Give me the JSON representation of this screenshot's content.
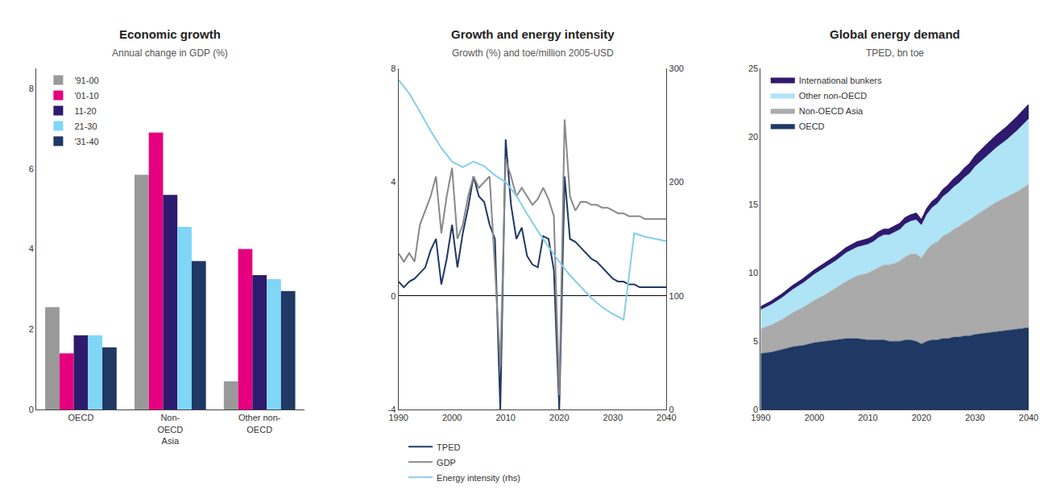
{
  "chart_data": [
    {
      "type": "bar",
      "title": "Economic growth",
      "subtitle": "Annual change in GDP (%)",
      "categories": [
        "OECD",
        "Non-\nOECD\nAsia",
        "Other non-\nOECD"
      ],
      "series": [
        {
          "name": "'91-00",
          "color": "#999999",
          "values": [
            2.55,
            5.85,
            0.7
          ]
        },
        {
          "name": "'01-10",
          "color": "#e6007e",
          "values": [
            1.4,
            6.9,
            4.0
          ]
        },
        {
          "name": "11-20",
          "color": "#2e1a6e",
          "values": [
            1.85,
            5.35,
            3.35
          ]
        },
        {
          "name": "21-30",
          "color": "#7fd6f7",
          "values": [
            1.85,
            4.55,
            3.25
          ]
        },
        {
          "name": "'31-40",
          "color": "#1f3864",
          "values": [
            1.55,
            3.7,
            2.95
          ]
        }
      ],
      "ylim": [
        0,
        8.5
      ],
      "yticks": [
        0,
        2,
        4,
        6,
        8
      ],
      "legend": "upper left",
      "grid": false
    },
    {
      "type": "line",
      "title": "Growth and energy intensity",
      "subtitle": "Growth (%) and toe/million 2005-USD",
      "xlim": [
        1990,
        2040
      ],
      "xticks": [
        1990,
        2000,
        2010,
        2020,
        2030,
        2040
      ],
      "ylim": [
        -4,
        8
      ],
      "yticks": [
        -4,
        0,
        4,
        8
      ],
      "y2lim": [
        0,
        300
      ],
      "y2ticks": [
        0,
        100,
        200,
        300
      ],
      "series": [
        {
          "name": "TPED",
          "color": "#1f3864",
          "x": [
            1990,
            1991,
            1992,
            1993,
            1994,
            1995,
            1996,
            1997,
            1998,
            1999,
            2000,
            2001,
            2002,
            2003,
            2004,
            2005,
            2006,
            2007,
            2008,
            2009,
            2010,
            2011,
            2012,
            2013,
            2014,
            2015,
            2016,
            2017,
            2018,
            2019,
            2020,
            2021,
            2022,
            2023,
            2024,
            2025,
            2026,
            2027,
            2028,
            2029,
            2030,
            2031,
            2032,
            2033,
            2034,
            2035,
            2036,
            2037,
            2038,
            2039,
            2040
          ],
          "values": [
            0.5,
            0.3,
            0.5,
            0.6,
            0.8,
            1.0,
            1.6,
            2.0,
            0.4,
            1.3,
            2.5,
            1.0,
            2.2,
            3.1,
            4.2,
            3.5,
            3.3,
            2.5,
            2.0,
            -4.0,
            5.5,
            3.2,
            2.0,
            2.4,
            1.4,
            1.1,
            1.0,
            2.1,
            2.0,
            0.9,
            -4.0,
            4.2,
            2.0,
            1.9,
            1.7,
            1.5,
            1.3,
            1.2,
            1.0,
            0.8,
            0.6,
            0.5,
            0.5,
            0.4,
            0.4,
            0.3,
            0.3,
            0.3,
            0.3,
            0.3,
            0.3
          ]
        },
        {
          "name": "GDP",
          "color": "#888888",
          "x": [
            1990,
            1991,
            1992,
            1993,
            1994,
            1995,
            1996,
            1997,
            1998,
            1999,
            2000,
            2001,
            2002,
            2003,
            2004,
            2005,
            2006,
            2007,
            2008,
            2009,
            2010,
            2011,
            2012,
            2013,
            2014,
            2015,
            2016,
            2017,
            2018,
            2019,
            2020,
            2021,
            2022,
            2023,
            2024,
            2025,
            2026,
            2027,
            2028,
            2029,
            2030,
            2031,
            2032,
            2033,
            2034,
            2035,
            2036,
            2037,
            2038,
            2039,
            2040
          ],
          "values": [
            1.5,
            1.2,
            1.5,
            1.2,
            2.5,
            3.0,
            3.5,
            4.2,
            2.2,
            3.5,
            4.5,
            2.0,
            2.5,
            3.5,
            4.2,
            3.8,
            4.0,
            4.2,
            1.0,
            -2.5,
            4.8,
            4.2,
            3.5,
            3.8,
            3.5,
            3.2,
            3.4,
            3.8,
            3.4,
            2.8,
            -3.5,
            6.2,
            3.5,
            3.0,
            3.3,
            3.3,
            3.2,
            3.2,
            3.1,
            3.1,
            3.0,
            2.9,
            2.9,
            2.8,
            2.8,
            2.8,
            2.7,
            2.7,
            2.7,
            2.7,
            2.7
          ]
        },
        {
          "name": "Energy intensity (rhs)",
          "color": "#87CEEB",
          "axis": "y2",
          "x": [
            1990,
            1992,
            1994,
            1996,
            1998,
            2000,
            2002,
            2004,
            2006,
            2008,
            2010,
            2012,
            2014,
            2016,
            2018,
            2020,
            2022,
            2024,
            2026,
            2028,
            2030,
            2032,
            2034,
            2036,
            2038,
            2040
          ],
          "values": [
            290,
            278,
            262,
            245,
            230,
            218,
            213,
            218,
            214,
            206,
            200,
            188,
            172,
            157,
            143,
            130,
            118,
            108,
            98,
            90,
            84,
            79,
            155,
            152,
            150,
            148
          ]
        }
      ],
      "legend": "lower left",
      "grid": false
    },
    {
      "type": "area",
      "stacked": true,
      "title": "Global energy demand",
      "subtitle": "TPED, bn toe",
      "x": [
        1990,
        1992,
        1994,
        1996,
        1998,
        2000,
        2002,
        2004,
        2006,
        2008,
        2010,
        2011,
        2012,
        2013,
        2014,
        2015,
        2016,
        2017,
        2018,
        2019,
        2020,
        2021,
        2022,
        2023,
        2024,
        2025,
        2026,
        2027,
        2028,
        2029,
        2030,
        2032,
        2034,
        2036,
        2038,
        2040
      ],
      "xlim": [
        1990,
        2040
      ],
      "xticks": [
        1990,
        2000,
        2010,
        2020,
        2030,
        2040
      ],
      "ylim": [
        0,
        25
      ],
      "yticks": [
        0,
        5,
        10,
        15,
        20,
        25
      ],
      "series": [
        {
          "name": "OECD",
          "color": "#1f3864",
          "values": [
            4.1,
            4.2,
            4.4,
            4.6,
            4.7,
            4.9,
            5.0,
            5.1,
            5.2,
            5.2,
            5.1,
            5.1,
            5.1,
            5.1,
            5.0,
            5.0,
            5.0,
            5.1,
            5.1,
            5.0,
            4.8,
            5.0,
            5.1,
            5.1,
            5.2,
            5.2,
            5.3,
            5.3,
            5.4,
            5.4,
            5.5,
            5.6,
            5.7,
            5.8,
            5.9,
            6.0
          ]
        },
        {
          "name": "Non-OECD Asia",
          "color": "#aaaaaa",
          "values": [
            1.8,
            2.0,
            2.2,
            2.5,
            2.8,
            3.1,
            3.4,
            3.8,
            4.2,
            4.6,
            4.9,
            5.1,
            5.3,
            5.5,
            5.6,
            5.7,
            5.9,
            6.1,
            6.3,
            6.4,
            6.3,
            6.7,
            7.0,
            7.2,
            7.5,
            7.7,
            7.9,
            8.1,
            8.3,
            8.5,
            8.7,
            9.1,
            9.5,
            9.8,
            10.1,
            10.5
          ]
        },
        {
          "name": "Other non-OECD",
          "color": "#aee4f5",
          "values": [
            1.4,
            1.5,
            1.6,
            1.7,
            1.8,
            1.9,
            2.0,
            2.0,
            2.1,
            2.1,
            2.1,
            2.1,
            2.2,
            2.2,
            2.2,
            2.3,
            2.3,
            2.4,
            2.4,
            2.5,
            2.4,
            2.6,
            2.7,
            2.8,
            2.9,
            3.0,
            3.1,
            3.2,
            3.3,
            3.4,
            3.6,
            3.8,
            4.0,
            4.2,
            4.5,
            4.8
          ]
        },
        {
          "name": "International bunkers",
          "color": "#2e1a6e",
          "values": [
            0.2,
            0.22,
            0.24,
            0.26,
            0.28,
            0.3,
            0.31,
            0.33,
            0.35,
            0.37,
            0.38,
            0.39,
            0.4,
            0.4,
            0.41,
            0.42,
            0.43,
            0.44,
            0.45,
            0.46,
            0.36,
            0.4,
            0.42,
            0.44,
            0.48,
            0.52,
            0.56,
            0.6,
            0.65,
            0.7,
            0.75,
            0.82,
            0.88,
            0.93,
            0.98,
            1.02
          ]
        }
      ],
      "legend": "upper left",
      "grid": false
    }
  ]
}
